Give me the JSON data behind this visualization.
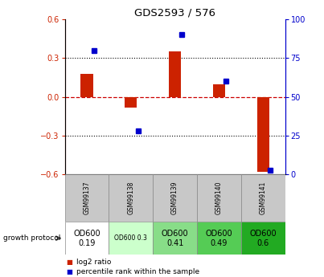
{
  "title": "GDS2593 / 576",
  "samples": [
    "GSM99137",
    "GSM99138",
    "GSM99139",
    "GSM99140",
    "GSM99141"
  ],
  "log2_ratio": [
    0.18,
    -0.08,
    0.35,
    0.1,
    -0.58
  ],
  "percentile_rank": [
    80,
    28,
    90,
    60,
    3
  ],
  "protocol_labels": [
    "OD600\n0.19",
    "OD600 0.3",
    "OD600\n0.41",
    "OD600\n0.49",
    "OD600\n0.6"
  ],
  "ylim_left": [
    -0.6,
    0.6
  ],
  "ylim_right": [
    0,
    100
  ],
  "yticks_left": [
    -0.6,
    -0.3,
    0.0,
    0.3,
    0.6
  ],
  "yticks_right": [
    0,
    25,
    50,
    75,
    100
  ],
  "red_color": "#cc2200",
  "blue_color": "#0000cc",
  "zero_line_color": "#cc0000",
  "legend_red": "log2 ratio",
  "legend_blue": "percentile rank within the sample",
  "growth_protocol_label": "growth protocol",
  "header_bg": "#c8c8c8",
  "proto_bg": [
    "#ffffff",
    "#ccffcc",
    "#88dd88",
    "#55cc55",
    "#22aa22"
  ],
  "proto_text_sizes": [
    7,
    5.5,
    7,
    7,
    7
  ]
}
